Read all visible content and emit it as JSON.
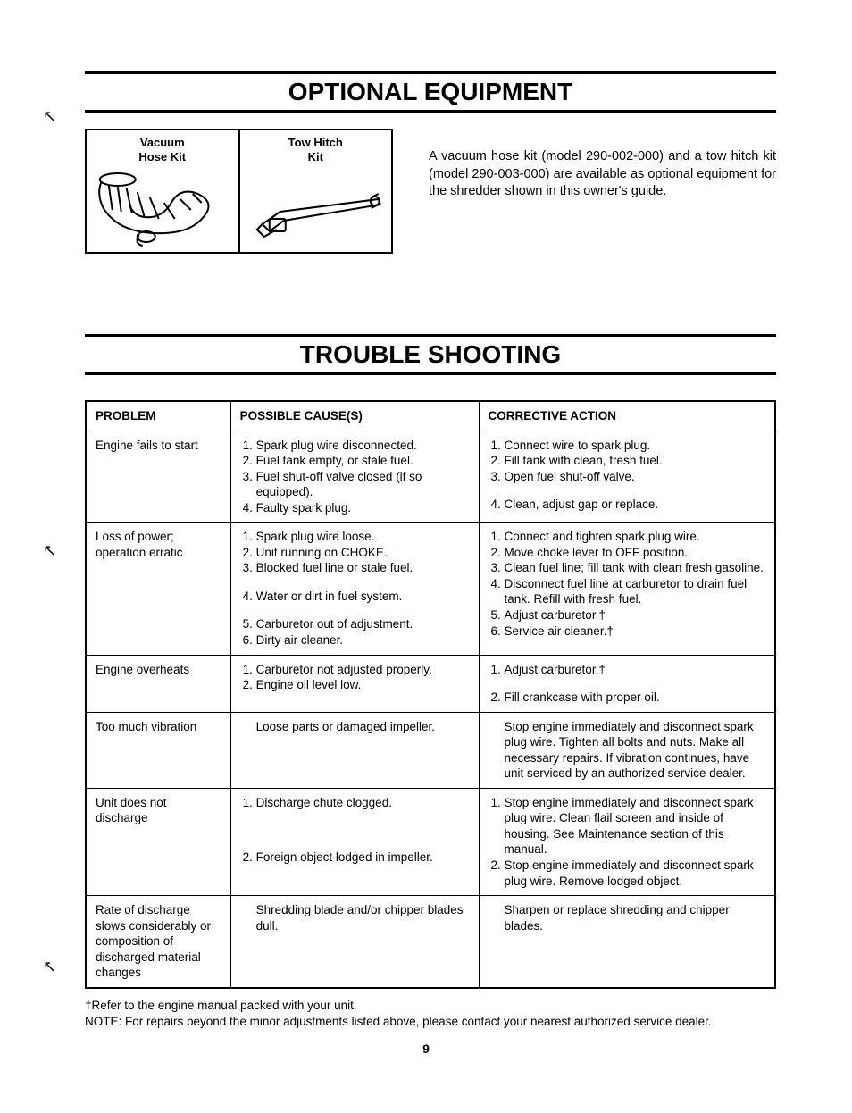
{
  "section1_title": "OPTIONAL EQUIPMENT",
  "kits": {
    "vacuum_label_1": "Vacuum",
    "vacuum_label_2": "Hose Kit",
    "tow_label_1": "Tow Hitch",
    "tow_label_2": "Kit"
  },
  "equip_paragraph": "A vacuum hose kit (model 290-002-000) and a tow hitch kit (model 290-003-000) are available as optional equipment for the shredder shown in this owner's guide.",
  "section2_title": "TROUBLE SHOOTING",
  "table": {
    "headers": {
      "problem": "PROBLEM",
      "cause": "POSSIBLE CAUSE(S)",
      "action": "CORRECTIVE ACTION"
    },
    "rows": [
      {
        "problem": "Engine fails to start",
        "causes": [
          "Spark plug wire disconnected.",
          "Fuel tank empty, or stale fuel.",
          "Fuel shut-off valve closed (if so equipped).",
          "Faulty spark plug."
        ],
        "actions": [
          "Connect wire to spark plug.",
          "Fill tank with clean, fresh fuel.",
          "Open fuel shut-off valve.",
          "Clean, adjust gap or replace."
        ],
        "action_gap_before": 4
      },
      {
        "problem": "Loss of power; operation erratic",
        "causes": [
          "Spark plug wire loose.",
          "Unit running on CHOKE.",
          "Blocked fuel line or stale fuel.",
          "Water or dirt in fuel system.",
          "Carburetor out of adjustment.",
          "Dirty air cleaner."
        ],
        "cause_gap_before": [
          4,
          5
        ],
        "actions": [
          "Connect and tighten spark plug wire.",
          "Move choke lever to OFF position.",
          "Clean fuel line; fill tank with clean fresh gasoline.",
          "Disconnect fuel line at carburetor to drain fuel tank. Refill with fresh fuel.",
          "Adjust carburetor.†",
          "Service air cleaner.†"
        ]
      },
      {
        "problem": "Engine overheats",
        "causes": [
          "Carburetor not adjusted properly.",
          "Engine oil level low."
        ],
        "actions": [
          "Adjust carburetor.†",
          "Fill crankcase with proper oil."
        ],
        "action_gap_before": 2
      },
      {
        "problem": "Too much vibration",
        "cause_plain": "Loose parts or damaged impeller.",
        "action_plain": "Stop engine immediately and disconnect spark plug wire. Tighten all bolts and nuts. Make all necessary repairs. If vibration continues, have unit serviced by an authorized service dealer."
      },
      {
        "problem": "Unit does not discharge",
        "causes": [
          "Discharge chute clogged.",
          "Foreign object lodged in impeller."
        ],
        "cause_gap_before": [
          2
        ],
        "cause_big_gap": true,
        "actions": [
          "Stop engine immediately and disconnect spark plug wire. Clean flail screen and inside of housing. See Maintenance section of this manual.",
          "Stop engine immediately and disconnect spark plug wire. Remove lodged object."
        ]
      },
      {
        "problem": "Rate of discharge slows considerably or composition of discharged material changes",
        "cause_plain": "Shredding blade and/or chipper blades dull.",
        "action_plain": "Sharpen or replace shredding and chipper blades."
      }
    ]
  },
  "footnote1": "†Refer to the engine manual packed with your unit.",
  "footnote2": "NOTE: For repairs beyond the minor adjustments listed above, please contact your nearest authorized service dealer.",
  "page_number": "9"
}
